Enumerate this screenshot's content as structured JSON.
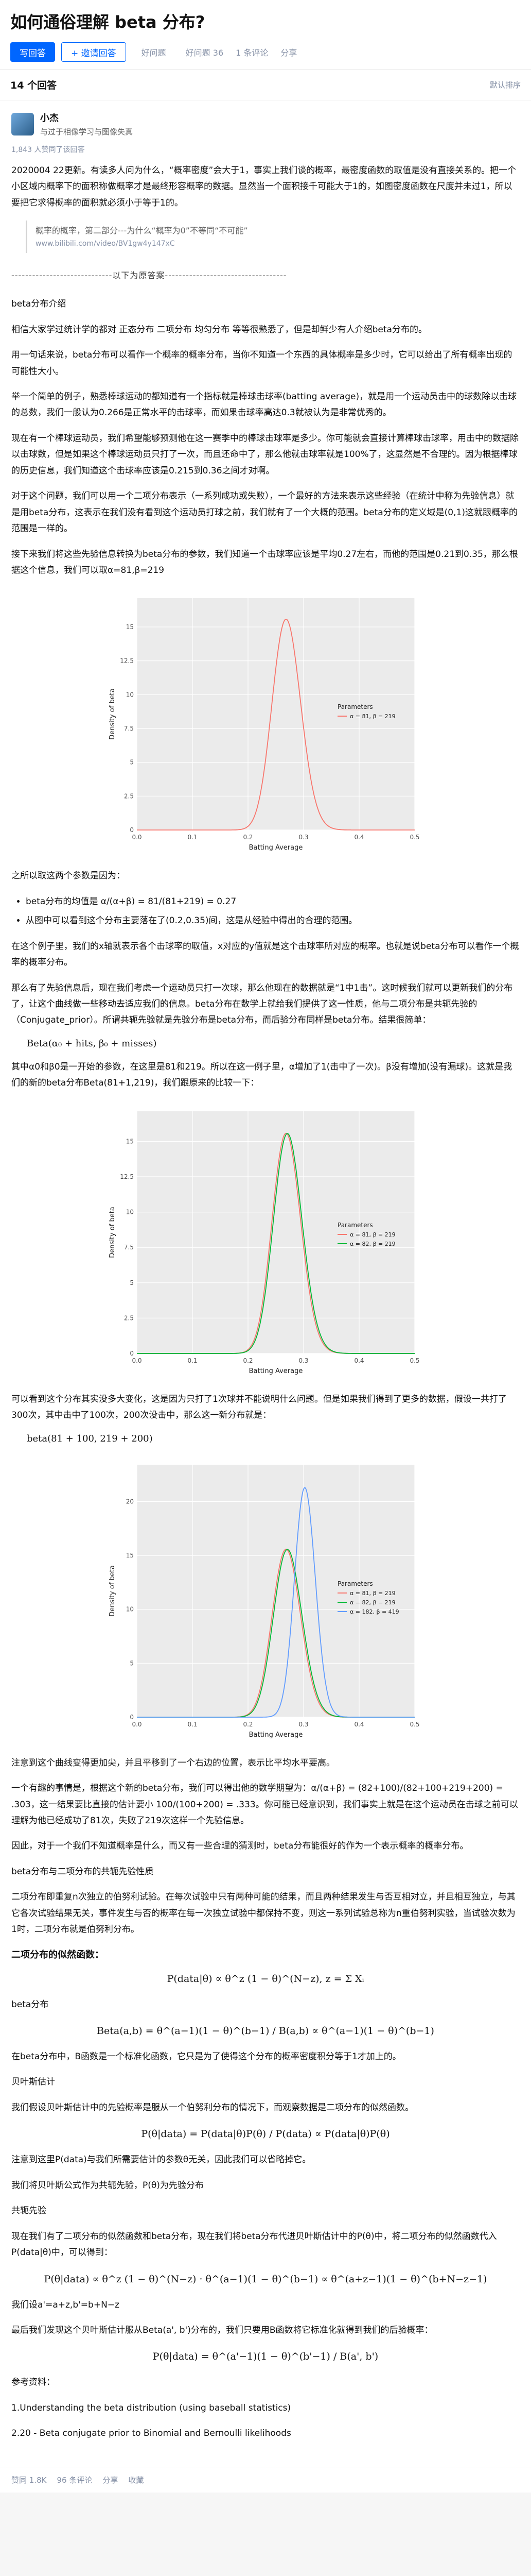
{
  "question": {
    "title": "如何通俗理解 beta 分布?",
    "write_answer": "写回答",
    "invite": "+ 邀请回答",
    "good_question": "好问题",
    "meta": [
      "好问题 36",
      "1 条评论",
      "分享"
    ]
  },
  "answers_header": {
    "count": "14 个回答",
    "sort": "默认排序"
  },
  "answer": {
    "author_name": "小杰",
    "author_bio": "与过于相像学习与图像失真",
    "likes": "1,843 人赞同了该回答",
    "intro": "2020004 22更新。有读多人问为什么，“概率密度”会大于1，事实上我们谈的概率，最密度函数的取值是没有直接关系的。把一个小区域内概率下的面积称做概率才是最终形容概率的数据。显然当一个面积接千可能大于1的，如图密度函数在尺度并未过1，所以要把它求得概率的面积就必须小于等于1的。",
    "quote_text": "概率的概率，第二部分---为什么“概率为0”不等同“不可能”",
    "quote_link": "www.bilibili.com/video/BV1gw4y147xC",
    "divider": "-----------------------------以下为原答案-----------------------------------",
    "sec1": "beta分布介绍",
    "p1": "相信大家学过统计学的都对 正态分布 二项分布 均匀分布 等等很熟悉了，但是却鲜少有人介绍beta分布的。",
    "p2": "用一句话来说，beta分布可以看作一个概率的概率分布，当你不知道一个东西的具体概率是多少时，它可以给出了所有概率出现的可能性大小。",
    "p3": "举一个简单的例子，熟悉棒球运动的都知道有一个指标就是棒球击球率(batting average)，就是用一个运动员击中的球数除以击球的总数，我们一般认为0.266是正常水平的击球率，而如果击球率高达0.3就被认为是非常优秀的。",
    "p4": "现在有一个棒球运动员，我们希望能够预测他在这一赛季中的棒球击球率是多少。你可能就会直接计算棒球击球率，用击中的数据除以击球数，但是如果这个棒球运动员只打了一次，而且还命中了，那么他就击球率就是100%了，这显然是不合理的。因为根据棒球的历史信息，我们知道这个击球率应该是0.215到0.36之间才对啊。",
    "p5": "对于这个问题，我们可以用一个二项分布表示（一系列成功或失败），一个最好的方法来表示这些经验（在统计中称为先验信息）就是用beta分布，这表示在我们没有看到这个运动员打球之前，我们就有了一个大概的范围。beta分布的定义域是(0,1)这就跟概率的范围是一样的。",
    "p6": "接下来我们将这些先验信息转换为beta分布的参数，我们知道一个击球率应该是平均0.27左右，而他的范围是0.21到0.35，那么根据这个信息，我们可以取α=81,β=219",
    "p7": "之所以取这两个参数是因为：",
    "bullet1": "beta分布的均值是 α/(α+β) = 81/(81+219) = 0.27",
    "bullet2": "从图中可以看到这个分布主要落在了(0.2,0.35)间，这是从经验中得出的合理的范围。",
    "p8": "在这个例子里，我们的x轴就表示各个击球率的取值，x对应的y值就是这个击球率所对应的概率。也就是说beta分布可以看作一个概率的概率分布。",
    "p9": "那么有了先验信息后，现在我们考虑一个运动员只打一次球，那么他现在的数据就是“1中1击”。这时候我们就可以更新我们的分布了，让这个曲线做一些移动去适应我们的信息。beta分布在数学上就给我们提供了这一性质，他与二项分布是共轭先验的（Conjugate_prior）。所谓共轭先验就是先验分布是beta分布，而后验分布同样是beta分布。结果很简单：",
    "formula1": "Beta(α₀ + hits, β₀ + misses)",
    "p10": "其中α0和β0是一开始的参数，在这里是81和219。所以在这一例子里，α增加了1(击中了一次)。β没有增加(没有漏球)。这就是我们的新的beta分布Beta(81+1,219)，我们跟原来的比较一下：",
    "p11": "可以看到这个分布其实没多大变化，这是因为只打了1次球并不能说明什么问题。但是如果我们得到了更多的数据，假设一共打了300次，其中击中了100次，200次没击中，那么这一新分布就是：",
    "formula2": "beta(81 + 100, 219 + 200)",
    "p12": "注意到这个曲线变得更加尖，并且平移到了一个右边的位置，表示比平均水平要高。",
    "p13": "一个有趣的事情是，根据这个新的beta分布，我们可以得出他的数学期望为：α/(α+β) = (82+100)/(82+100+219+200) = .303，这一结果要比直接的估计要小 100/(100+200) = .333。你可能已经意识到，我们事实上就是在这个运动员在击球之前可以理解为他已经成功了81次，失败了219次这样一个先验信息。",
    "p14": "因此，对于一个我们不知道概率是什么，而又有一些合理的猜测时，beta分布能很好的作为一个表示概率的概率分布。",
    "sec2": "beta分布与二项分布的共轭先验性质",
    "p15": "二项分布即重复n次独立的伯努利试验。在每次试验中只有两种可能的结果，而且两种结果发生与否互相对立，并且相互独立，与其它各次试验结果无关，事件发生与否的概率在每一次独立试验中都保持不变，则这一系列试验总称为n重伯努利实验，当试验次数为1时，二项分布就是伯努利分布。",
    "sec3": "二项分布的似然函数：",
    "formula3": "P(data|θ) ∝ θ^z (1 − θ)^(N−z),   z = Σ Xᵢ",
    "p16": "beta分布",
    "formula4": "Beta(a,b) = θ^(a−1)(1 − θ)^(b−1) / B(a,b) ∝ θ^(a−1)(1 − θ)^(b−1)",
    "p17": "在beta分布中，B函数是一个标准化函数，它只是为了使得这个分布的概率密度积分等于1才加上的。",
    "sec4": "贝叶斯估计",
    "p18": "我们假设贝叶斯估计中的先验概率是服从一个伯努利分布的情况下，而观察数据是二项分布的似然函数。",
    "formula5": "P(θ|data) = P(data|θ)P(θ) / P(data) ∝ P(data|θ)P(θ)",
    "p19": "注意到这里P(data)与我们所需要估计的参数θ无关，因此我们可以省略掉它。",
    "p20": "我们将贝叶斯公式作为共轭先验，P(θ)为先验分布",
    "sec5": "共轭先验",
    "p21": "现在我们有了二项分布的似然函数和beta分布，现在我们将beta分布代进贝叶斯估计中的P(θ)中，将二项分布的似然函数代入P(data|θ)中，可以得到：",
    "formula6": "P(θ|data) ∝ θ^z (1 − θ)^(N−z) · θ^(a−1)(1 − θ)^(b−1) ∝ θ^(a+z−1)(1 − θ)^(b+N−z−1)",
    "p22": "我们设a'=a+z,b'=b+N−z",
    "p23": "最后我们发现这个贝叶斯估计服从Beta(a', b')分布的，我们只要用B函数将它标准化就得到我们的后验概率：",
    "formula7": "P(θ|data) = θ^(a'−1)(1 − θ)^(b'−1) / B(a', b')",
    "refs_title": "参考资料：",
    "ref1": "1.Understanding the beta distribution (using baseball statistics)",
    "ref2": "2.20 - Beta conjugate prior to Binomial and Bernoulli likelihoods"
  },
  "plot1": {
    "legend_title": "Parameters",
    "series": [
      {
        "name": "α = 81, β = 219",
        "a": 81,
        "b": 219,
        "color": "#f8766d"
      }
    ]
  },
  "plot2": {
    "legend_title": "Parameters",
    "series": [
      {
        "name": "α = 81, β = 219",
        "a": 81,
        "b": 219,
        "color": "#f8766d"
      },
      {
        "name": "α = 82, β = 219",
        "a": 82,
        "b": 219,
        "color": "#00ba38"
      }
    ]
  },
  "plot3": {
    "legend_title": "Parameters",
    "series": [
      {
        "name": "α = 81, β = 219",
        "a": 81,
        "b": 219,
        "color": "#f8766d"
      },
      {
        "name": "α = 82, β = 219",
        "a": 82,
        "b": 219,
        "color": "#00ba38"
      },
      {
        "name": "α = 182, β = 419",
        "a": 182,
        "b": 419,
        "color": "#619cff"
      }
    ]
  },
  "axis": {
    "x_label": "Batting Average",
    "y_label": "Density of beta",
    "x_ticks": [
      "0.0",
      "0.1",
      "0.2",
      "0.3",
      "0.4",
      "0.5"
    ]
  },
  "footer": {
    "comments": "96 条评论",
    "share": "分享",
    "favorite": "收藏",
    "like": "赞同 1.8K"
  }
}
